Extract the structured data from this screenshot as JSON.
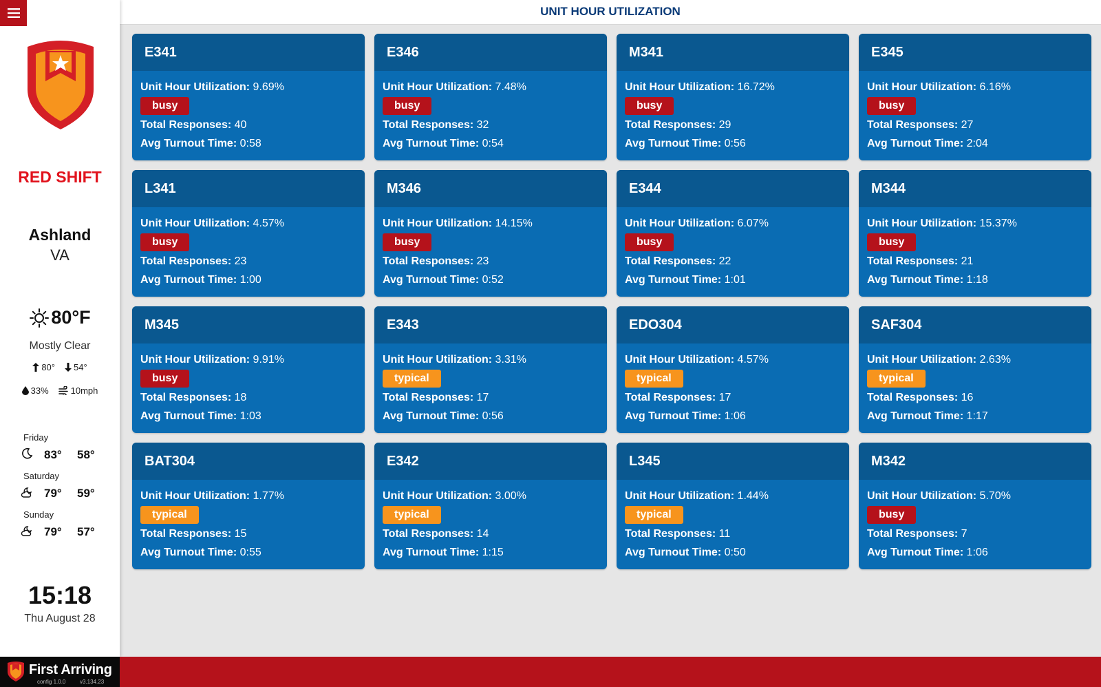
{
  "header": {
    "title": "UNIT HOUR UTILIZATION"
  },
  "sidebar": {
    "shift": "RED SHIFT",
    "city": "Ashland",
    "state": "VA",
    "weather": {
      "temp": "80°F",
      "condition": "Mostly Clear",
      "high": "80°",
      "low": "54°",
      "humidity": "33%",
      "wind": "10mph"
    },
    "forecast": [
      {
        "day": "Friday",
        "hi": "83°",
        "lo": "58°",
        "icon": "moon-icon"
      },
      {
        "day": "Saturday",
        "hi": "79°",
        "lo": "59°",
        "icon": "partly-cloudy-night-icon"
      },
      {
        "day": "Sunday",
        "hi": "79°",
        "lo": "57°",
        "icon": "partly-cloudy-night-icon"
      }
    ],
    "time": "15:18",
    "date": "Thu August 28"
  },
  "footer": {
    "brand": "First Arriving",
    "config": "config 1.0.0",
    "version": "v3.134.23"
  },
  "labels": {
    "utilization": "Unit Hour Utilization:",
    "responses": "Total Responses:",
    "turnout": "Avg Turnout Time:"
  },
  "colors": {
    "busy": "#b5121b",
    "typical": "#f7941d",
    "card": "#0a6cb3",
    "card_head": "#0a5890"
  },
  "units": [
    {
      "name": "E341",
      "utilization": "9.69%",
      "status": "busy",
      "responses": "40",
      "turnout": "0:58"
    },
    {
      "name": "E346",
      "utilization": "7.48%",
      "status": "busy",
      "responses": "32",
      "turnout": "0:54"
    },
    {
      "name": "M341",
      "utilization": "16.72%",
      "status": "busy",
      "responses": "29",
      "turnout": "0:56"
    },
    {
      "name": "E345",
      "utilization": "6.16%",
      "status": "busy",
      "responses": "27",
      "turnout": "2:04"
    },
    {
      "name": "L341",
      "utilization": "4.57%",
      "status": "busy",
      "responses": "23",
      "turnout": "1:00"
    },
    {
      "name": "M346",
      "utilization": "14.15%",
      "status": "busy",
      "responses": "23",
      "turnout": "0:52"
    },
    {
      "name": "E344",
      "utilization": "6.07%",
      "status": "busy",
      "responses": "22",
      "turnout": "1:01"
    },
    {
      "name": "M344",
      "utilization": "15.37%",
      "status": "busy",
      "responses": "21",
      "turnout": "1:18"
    },
    {
      "name": "M345",
      "utilization": "9.91%",
      "status": "busy",
      "responses": "18",
      "turnout": "1:03"
    },
    {
      "name": "E343",
      "utilization": "3.31%",
      "status": "typical",
      "responses": "17",
      "turnout": "0:56"
    },
    {
      "name": "EDO304",
      "utilization": "4.57%",
      "status": "typical",
      "responses": "17",
      "turnout": "1:06"
    },
    {
      "name": "SAF304",
      "utilization": "2.63%",
      "status": "typical",
      "responses": "16",
      "turnout": "1:17"
    },
    {
      "name": "BAT304",
      "utilization": "1.77%",
      "status": "typical",
      "responses": "15",
      "turnout": "0:55"
    },
    {
      "name": "E342",
      "utilization": "3.00%",
      "status": "typical",
      "responses": "14",
      "turnout": "1:15"
    },
    {
      "name": "L345",
      "utilization": "1.44%",
      "status": "typical",
      "responses": "11",
      "turnout": "0:50"
    },
    {
      "name": "M342",
      "utilization": "5.70%",
      "status": "busy",
      "responses": "7",
      "turnout": "1:06"
    }
  ]
}
